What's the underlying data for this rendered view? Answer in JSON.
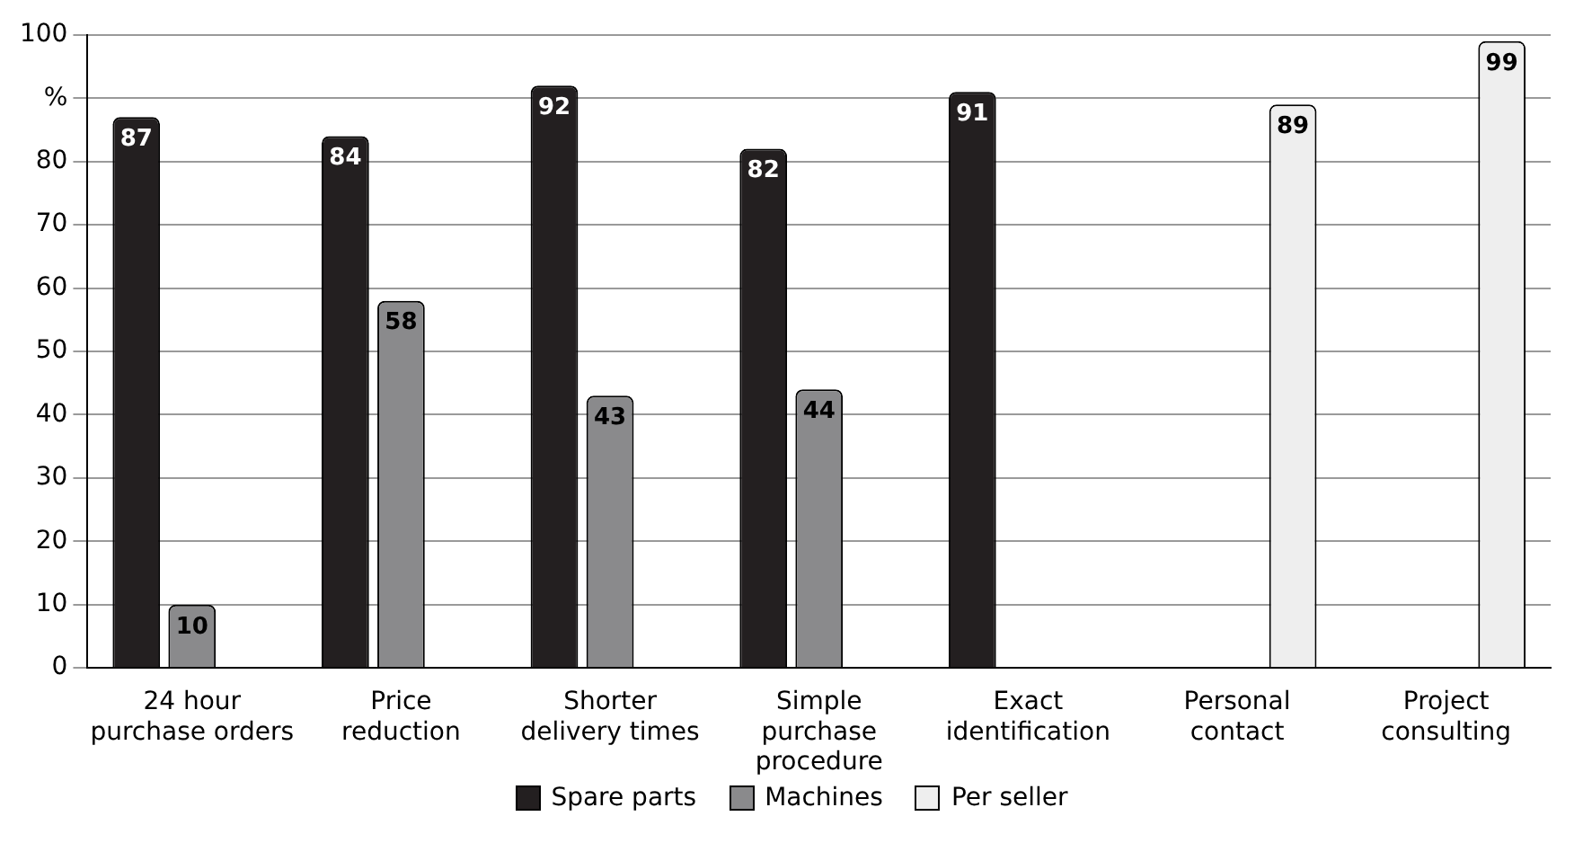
{
  "chart_data": {
    "type": "bar",
    "categories": [
      "24 hour\npurchase orders",
      "Price\nreduction",
      "Shorter\ndelivery times",
      "Simple\npurchase\nprocedure",
      "Exact\nidentification",
      "Personal\ncontact",
      "Project\nconsulting"
    ],
    "series": [
      {
        "name": "Spare parts",
        "color": "#231f20",
        "values": [
          87,
          84,
          92,
          82,
          91,
          null,
          null
        ]
      },
      {
        "name": "Machines",
        "color": "#8a8a8c",
        "values": [
          10,
          58,
          43,
          44,
          null,
          null,
          null
        ]
      },
      {
        "name": "Per seller",
        "color": "#eeeeee",
        "values": [
          null,
          null,
          null,
          null,
          null,
          89,
          99
        ]
      }
    ],
    "ylim": [
      0,
      100
    ],
    "yticks": [
      0,
      10,
      20,
      30,
      40,
      50,
      60,
      70,
      80,
      {
        "value": 90,
        "label": "%"
      },
      100
    ],
    "grid": "y",
    "legend": "bottom",
    "data_labels": true
  }
}
